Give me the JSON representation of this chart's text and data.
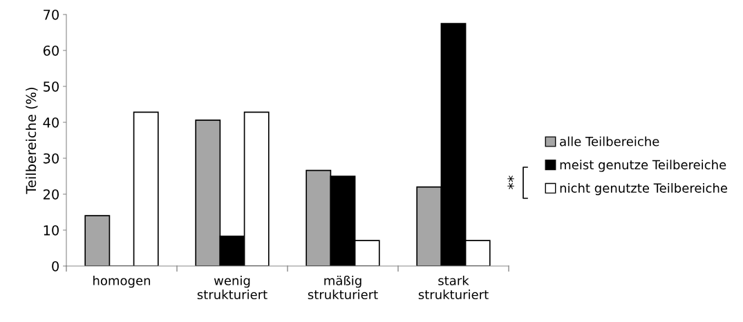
{
  "chart_data": {
    "type": "bar",
    "ylabel": "Teilbereiche (%)",
    "categories": [
      "homogen",
      "wenig\nstrukturiert",
      "mäßig\nstrukturiert",
      "stark\nstrukturiert"
    ],
    "series": [
      {
        "name": "alle Teilbereiche",
        "color": "#a6a6a6",
        "values": [
          14.0,
          40.6,
          26.6,
          22.0
        ]
      },
      {
        "name": "meist genutze Teilbereiche",
        "color": "#000000",
        "values": [
          0,
          8.3,
          25.0,
          67.5
        ]
      },
      {
        "name": "nicht genutzte Teilbereiche",
        "color": "#ffffff",
        "values": [
          42.8,
          42.8,
          7.1,
          7.1
        ]
      }
    ],
    "ylim": [
      0,
      70
    ],
    "yticks": [
      0,
      10,
      20,
      30,
      40,
      50,
      60,
      70
    ],
    "grid": false,
    "legend": "right",
    "annotations": [
      "**"
    ]
  }
}
